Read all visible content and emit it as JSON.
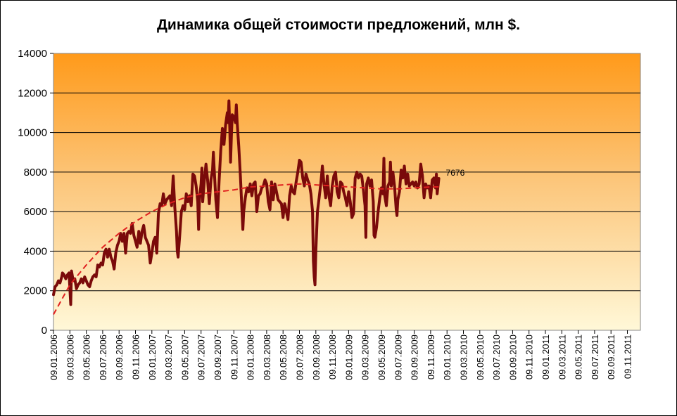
{
  "chart_data": {
    "type": "line",
    "title": "Динамика общей стоимости предложений, млн $.",
    "ylim": [
      0,
      14000
    ],
    "yticks": [
      0,
      2000,
      4000,
      6000,
      8000,
      10000,
      12000,
      14000
    ],
    "xticks": [
      "09.01.2006",
      "09.03.2006",
      "09.05.2006",
      "09.07.2006",
      "09.09.2006",
      "09.11.2006",
      "09.01.2007",
      "09.03.2007",
      "09.05.2007",
      "09.07.2007",
      "09.09.2007",
      "09.11.2007",
      "09.01.2008",
      "09.03.2008",
      "09.05.2008",
      "09.07.2008",
      "09.09.2008",
      "09.11.2008",
      "09.01.2009",
      "09.03.2009",
      "09.05.2009",
      "09.07.2009",
      "09.09.2009",
      "09.11.2009",
      "09.01.2010",
      "09.03.2010",
      "09.05.2010",
      "09.07.2010",
      "09.09.2010",
      "09.11.2010",
      "09.01.2011",
      "09.03.2011",
      "09.05.2011",
      "09.07.2011",
      "09.09.2011",
      "09.11.2011"
    ],
    "grid": true,
    "background": "vertical gradient from orange (top) to pale yellow (bottom)",
    "colors": {
      "series": "#7a0a0a",
      "trend": "#e02020",
      "bg_top": "#ff9a1a",
      "bg_bottom": "#fff8d8"
    },
    "series": [
      {
        "values": [
          [
            0,
            1800
          ],
          [
            0.1,
            2200
          ],
          [
            0.2,
            2300
          ],
          [
            0.3,
            2500
          ],
          [
            0.4,
            2400
          ],
          [
            0.5,
            2700
          ],
          [
            0.55,
            2900
          ],
          [
            0.65,
            2800
          ],
          [
            0.75,
            2600
          ],
          [
            0.85,
            2800
          ],
          [
            0.95,
            2900
          ],
          [
            1.05,
            1300
          ],
          [
            1.1,
            3000
          ],
          [
            1.2,
            2500
          ],
          [
            1.3,
            2600
          ],
          [
            1.4,
            2100
          ],
          [
            1.5,
            2300
          ],
          [
            1.6,
            2400
          ],
          [
            1.7,
            2600
          ],
          [
            1.8,
            2400
          ],
          [
            1.9,
            2700
          ],
          [
            2.0,
            2500
          ],
          [
            2.1,
            2300
          ],
          [
            2.2,
            2200
          ],
          [
            2.3,
            2500
          ],
          [
            2.4,
            2700
          ],
          [
            2.5,
            2800
          ],
          [
            2.6,
            2700
          ],
          [
            2.7,
            3300
          ],
          [
            2.8,
            3200
          ],
          [
            2.9,
            3400
          ],
          [
            3.0,
            3300
          ],
          [
            3.1,
            3900
          ],
          [
            3.2,
            4100
          ],
          [
            3.3,
            3700
          ],
          [
            3.4,
            4100
          ],
          [
            3.5,
            3700
          ],
          [
            3.6,
            3500
          ],
          [
            3.7,
            3100
          ],
          [
            3.8,
            3900
          ],
          [
            3.9,
            4300
          ],
          [
            4.0,
            4500
          ],
          [
            4.1,
            4900
          ],
          [
            4.2,
            4500
          ],
          [
            4.3,
            4900
          ],
          [
            4.4,
            3900
          ],
          [
            4.5,
            4900
          ],
          [
            4.6,
            5000
          ],
          [
            4.7,
            4900
          ],
          [
            4.8,
            5400
          ],
          [
            4.9,
            4800
          ],
          [
            5.0,
            4500
          ],
          [
            5.1,
            4200
          ],
          [
            5.2,
            5000
          ],
          [
            5.3,
            4400
          ],
          [
            5.4,
            5000
          ],
          [
            5.5,
            5300
          ],
          [
            5.6,
            4700
          ],
          [
            5.7,
            4500
          ],
          [
            5.8,
            4300
          ],
          [
            5.9,
            3400
          ],
          [
            6.0,
            3900
          ],
          [
            6.1,
            4500
          ],
          [
            6.2,
            4700
          ],
          [
            6.3,
            3900
          ],
          [
            6.4,
            5900
          ],
          [
            6.5,
            6400
          ],
          [
            6.6,
            6300
          ],
          [
            6.7,
            6900
          ],
          [
            6.8,
            6400
          ],
          [
            6.9,
            6600
          ],
          [
            7.0,
            6700
          ],
          [
            7.1,
            6800
          ],
          [
            7.2,
            6300
          ],
          [
            7.3,
            7800
          ],
          [
            7.4,
            6200
          ],
          [
            7.5,
            5000
          ],
          [
            7.55,
            4000
          ],
          [
            7.6,
            3700
          ],
          [
            7.7,
            4800
          ],
          [
            7.8,
            6000
          ],
          [
            7.9,
            6300
          ],
          [
            8.0,
            6100
          ],
          [
            8.1,
            6900
          ],
          [
            8.2,
            6500
          ],
          [
            8.3,
            6800
          ],
          [
            8.4,
            6300
          ],
          [
            8.5,
            7900
          ],
          [
            8.6,
            7800
          ],
          [
            8.7,
            7300
          ],
          [
            8.8,
            6500
          ],
          [
            8.85,
            5100
          ],
          [
            8.9,
            6600
          ],
          [
            9.0,
            7400
          ],
          [
            9.05,
            8200
          ],
          [
            9.1,
            6500
          ],
          [
            9.2,
            7600
          ],
          [
            9.3,
            8400
          ],
          [
            9.4,
            7600
          ],
          [
            9.5,
            6400
          ],
          [
            9.6,
            7600
          ],
          [
            9.7,
            8100
          ],
          [
            9.75,
            9000
          ],
          [
            9.8,
            8200
          ],
          [
            9.9,
            6600
          ],
          [
            10.0,
            5700
          ],
          [
            10.1,
            7500
          ],
          [
            10.2,
            9100
          ],
          [
            10.3,
            10200
          ],
          [
            10.4,
            9400
          ],
          [
            10.5,
            10400
          ],
          [
            10.6,
            11000
          ],
          [
            10.65,
            10500
          ],
          [
            10.7,
            11600
          ],
          [
            10.75,
            10200
          ],
          [
            10.8,
            8500
          ],
          [
            10.85,
            9800
          ],
          [
            10.9,
            10900
          ],
          [
            11.0,
            10800
          ],
          [
            11.1,
            10500
          ],
          [
            11.15,
            11400
          ],
          [
            11.2,
            10500
          ],
          [
            11.3,
            9300
          ],
          [
            11.4,
            7800
          ],
          [
            11.5,
            6000
          ],
          [
            11.55,
            5100
          ],
          [
            11.6,
            6000
          ],
          [
            11.7,
            6700
          ],
          [
            11.8,
            7200
          ],
          [
            11.9,
            7000
          ],
          [
            12.0,
            7400
          ],
          [
            12.1,
            6800
          ],
          [
            12.2,
            7400
          ],
          [
            12.3,
            7500
          ],
          [
            12.4,
            6000
          ],
          [
            12.5,
            6800
          ],
          [
            12.6,
            6900
          ],
          [
            12.7,
            7200
          ],
          [
            12.8,
            7300
          ],
          [
            12.9,
            7600
          ],
          [
            13.0,
            7400
          ],
          [
            13.1,
            6500
          ],
          [
            13.2,
            6100
          ],
          [
            13.3,
            7500
          ],
          [
            13.4,
            6600
          ],
          [
            13.5,
            7400
          ],
          [
            13.6,
            7000
          ],
          [
            13.7,
            6600
          ],
          [
            13.8,
            6500
          ],
          [
            13.9,
            6400
          ],
          [
            14.0,
            5700
          ],
          [
            14.1,
            6400
          ],
          [
            14.2,
            6000
          ],
          [
            14.3,
            5600
          ],
          [
            14.4,
            6800
          ],
          [
            14.5,
            7300
          ],
          [
            14.6,
            7000
          ],
          [
            14.7,
            6900
          ],
          [
            14.8,
            7500
          ],
          [
            14.9,
            8000
          ],
          [
            15.0,
            8600
          ],
          [
            15.1,
            8500
          ],
          [
            15.2,
            7700
          ],
          [
            15.3,
            7300
          ],
          [
            15.4,
            7900
          ],
          [
            15.5,
            7600
          ],
          [
            15.6,
            7400
          ],
          [
            15.7,
            6900
          ],
          [
            15.8,
            6000
          ],
          [
            15.85,
            3500
          ],
          [
            15.9,
            2700
          ],
          [
            15.95,
            2300
          ],
          [
            16.0,
            4000
          ],
          [
            16.1,
            6000
          ],
          [
            16.2,
            6700
          ],
          [
            16.3,
            7400
          ],
          [
            16.4,
            8300
          ],
          [
            16.5,
            7400
          ],
          [
            16.6,
            6700
          ],
          [
            16.7,
            7800
          ],
          [
            16.8,
            6800
          ],
          [
            16.9,
            6300
          ],
          [
            17.0,
            7300
          ],
          [
            17.1,
            7800
          ],
          [
            17.2,
            8000
          ],
          [
            17.3,
            7000
          ],
          [
            17.4,
            6700
          ],
          [
            17.5,
            7500
          ],
          [
            17.6,
            7400
          ],
          [
            17.7,
            7000
          ],
          [
            17.8,
            6700
          ],
          [
            17.9,
            6300
          ],
          [
            18.0,
            7000
          ],
          [
            18.1,
            6500
          ],
          [
            18.2,
            5700
          ],
          [
            18.3,
            5900
          ],
          [
            18.4,
            7700
          ],
          [
            18.5,
            8000
          ],
          [
            18.6,
            7700
          ],
          [
            18.7,
            7900
          ],
          [
            18.8,
            7800
          ],
          [
            18.9,
            7100
          ],
          [
            19.0,
            6300
          ],
          [
            19.05,
            4700
          ],
          [
            19.1,
            7400
          ],
          [
            19.2,
            7700
          ],
          [
            19.3,
            7300
          ],
          [
            19.4,
            7600
          ],
          [
            19.5,
            6500
          ],
          [
            19.55,
            4800
          ],
          [
            19.6,
            4700
          ],
          [
            19.7,
            5200
          ],
          [
            19.8,
            6000
          ],
          [
            19.9,
            6700
          ],
          [
            20.0,
            7200
          ],
          [
            20.1,
            6900
          ],
          [
            20.15,
            8700
          ],
          [
            20.2,
            6800
          ],
          [
            20.3,
            6300
          ],
          [
            20.4,
            7300
          ],
          [
            20.5,
            7500
          ],
          [
            20.55,
            8500
          ],
          [
            20.6,
            7300
          ],
          [
            20.7,
            8000
          ],
          [
            20.8,
            7300
          ],
          [
            20.9,
            6100
          ],
          [
            20.95,
            5800
          ],
          [
            21.0,
            6600
          ],
          [
            21.1,
            7000
          ],
          [
            21.2,
            8100
          ],
          [
            21.3,
            7700
          ],
          [
            21.4,
            8300
          ],
          [
            21.5,
            7400
          ],
          [
            21.6,
            7900
          ],
          [
            21.7,
            7300
          ],
          [
            21.8,
            7400
          ],
          [
            21.9,
            7500
          ],
          [
            22.0,
            7300
          ],
          [
            22.1,
            7500
          ],
          [
            22.2,
            7200
          ],
          [
            22.3,
            7400
          ],
          [
            22.4,
            8400
          ],
          [
            22.5,
            7800
          ],
          [
            22.6,
            6700
          ],
          [
            22.7,
            7400
          ],
          [
            22.8,
            7200
          ],
          [
            22.9,
            7300
          ],
          [
            23.0,
            6700
          ],
          [
            23.1,
            7600
          ],
          [
            23.2,
            7700
          ],
          [
            23.3,
            7200
          ],
          [
            23.35,
            7900
          ],
          [
            23.4,
            6900
          ],
          [
            23.5,
            7676
          ]
        ]
      },
      {
        "values": [
          [
            0,
            800
          ],
          [
            1,
            2300
          ],
          [
            2,
            3300
          ],
          [
            3,
            4200
          ],
          [
            4,
            4900
          ],
          [
            5,
            5500
          ],
          [
            6,
            6000
          ],
          [
            7,
            6400
          ],
          [
            8,
            6700
          ],
          [
            9,
            6900
          ],
          [
            10,
            7000
          ],
          [
            11,
            7100
          ],
          [
            12,
            7250
          ],
          [
            13,
            7300
          ],
          [
            14,
            7350
          ],
          [
            15,
            7400
          ],
          [
            16,
            7350
          ],
          [
            17,
            7300
          ],
          [
            18,
            7250
          ],
          [
            19,
            7200
          ],
          [
            20,
            7150
          ],
          [
            21,
            7150
          ],
          [
            22,
            7200
          ],
          [
            23,
            7250
          ],
          [
            23.5,
            7250
          ]
        ]
      }
    ],
    "end_label": "7676"
  }
}
